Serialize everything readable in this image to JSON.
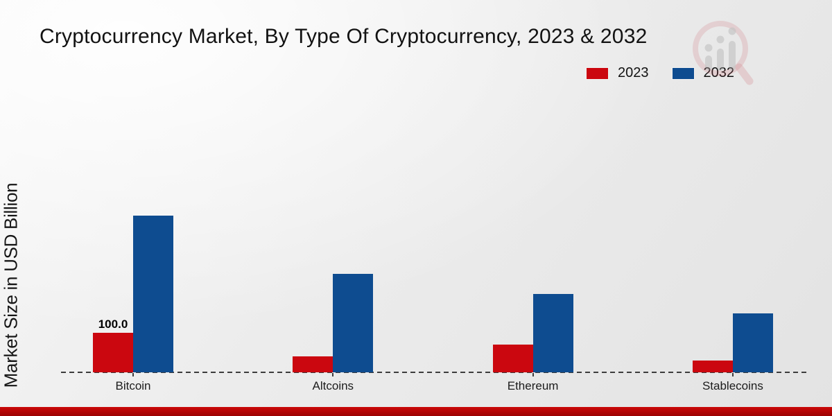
{
  "title": "Cryptocurrency Market, By Type Of Cryptocurrency, 2023 & 2032",
  "y_axis_label": "Market Size in USD Billion",
  "legend": {
    "items": [
      {
        "label": "2023",
        "color": "#cb070f"
      },
      {
        "label": "2032",
        "color": "#0e4c90"
      }
    ]
  },
  "colors": {
    "series_2023": "#cb070f",
    "series_2032": "#0e4c90",
    "footer_accent": "#b20505",
    "baseline": "#3c3c3c"
  },
  "chart_data": {
    "type": "bar",
    "title": "Cryptocurrency Market, By Type Of Cryptocurrency, 2023 & 2032",
    "categories": [
      "Bitcoin",
      "Altcoins",
      "Ethereum",
      "Stablecoins"
    ],
    "series": [
      {
        "name": "2023",
        "color": "#cb070f",
        "values": [
          100.0,
          40,
          70,
          30
        ]
      },
      {
        "name": "2032",
        "color": "#0e4c90",
        "values": [
          400,
          250,
          200,
          150
        ]
      }
    ],
    "bar_labels": [
      {
        "series": "2023",
        "category": "Bitcoin",
        "text": "100.0"
      }
    ],
    "xlabel": "",
    "ylabel": "Market Size in USD Billion",
    "ylim": [
      0,
      450
    ],
    "grid": false,
    "legend_position": "top-right",
    "baseline_style": "dashed",
    "y_tick_labels_visible": false
  }
}
